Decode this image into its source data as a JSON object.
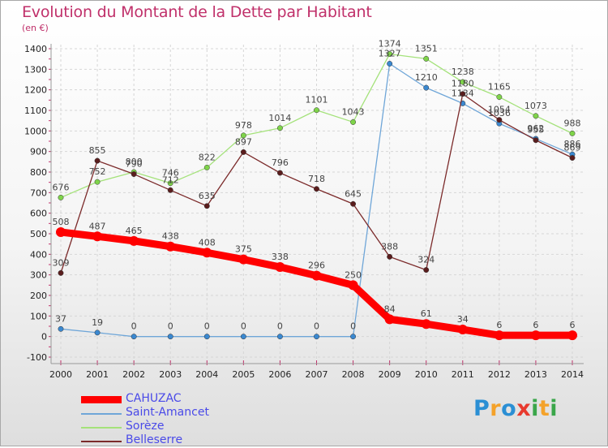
{
  "title": "Evolution du Montant de la Dette par Habitant",
  "unit_label": "(en €)",
  "logo": {
    "letters": [
      "P",
      "r",
      "o",
      "x",
      "i",
      "t",
      "i"
    ],
    "colors": [
      "#2b8fd4",
      "#f4a22a",
      "#2b8fd4",
      "#e83a2e",
      "#3aa64a",
      "#f4a22a",
      "#3aa64a"
    ]
  },
  "chart_data": {
    "type": "line",
    "title": "Evolution du Montant de la Dette par Habitant",
    "ylabel": "(en €)",
    "xlabel": "",
    "x": [
      "2000",
      "2001",
      "2002",
      "2003",
      "2004",
      "2005",
      "2006",
      "2007",
      "2008",
      "2009",
      "2010",
      "2011",
      "2012",
      "2013",
      "2014"
    ],
    "yticks": [
      "-100",
      "0",
      "100",
      "200",
      "300",
      "400",
      "500",
      "600",
      "700",
      "800",
      "900",
      "1000",
      "1100",
      "1200",
      "1300",
      "1400"
    ],
    "ylim": [
      -100,
      1400
    ],
    "grid": true,
    "series": [
      {
        "name": "CAHUZAC",
        "color": "#ff0000",
        "values": [
          508,
          487,
          465,
          438,
          408,
          375,
          338,
          296,
          250,
          84,
          61,
          34,
          6,
          6,
          6
        ],
        "labels": [
          "508",
          "487",
          "465",
          "438",
          "408",
          "375",
          "338",
          "296",
          "250",
          "84",
          "61",
          "34",
          "6",
          "6",
          "6"
        ]
      },
      {
        "name": "Saint-Amancet",
        "color": "#6fa6d8",
        "values": [
          37,
          19,
          0,
          0,
          0,
          0,
          0,
          0,
          0,
          1327,
          1210,
          1134,
          1036,
          962,
          886
        ],
        "labels": [
          "37",
          "19",
          "0",
          "0",
          "0",
          "0",
          "0",
          "0",
          "0",
          "1327",
          "1210",
          "1134",
          "1036",
          "962",
          "886"
        ]
      },
      {
        "name": "Sorèze",
        "color": "#a4e27a",
        "values": [
          676,
          752,
          800,
          746,
          822,
          978,
          1014,
          1101,
          1043,
          1374,
          1351,
          1238,
          1165,
          1073,
          988
        ],
        "labels": [
          "676",
          "752",
          "800",
          "746",
          "822",
          "978",
          "1014",
          "1101",
          "1043",
          "1374",
          "1351",
          "1238",
          "1165",
          "1073",
          "988"
        ]
      },
      {
        "name": "Belleserre",
        "color": "#7b2a2a",
        "values": [
          309,
          855,
          790,
          712,
          635,
          897,
          796,
          718,
          645,
          388,
          324,
          1180,
          1054,
          955,
          869
        ],
        "labels": [
          "309",
          "855",
          "790",
          "712",
          "635",
          "897",
          "796",
          "718",
          "645",
          "388",
          "324",
          "1180",
          "1054",
          "955",
          "869"
        ]
      }
    ]
  }
}
